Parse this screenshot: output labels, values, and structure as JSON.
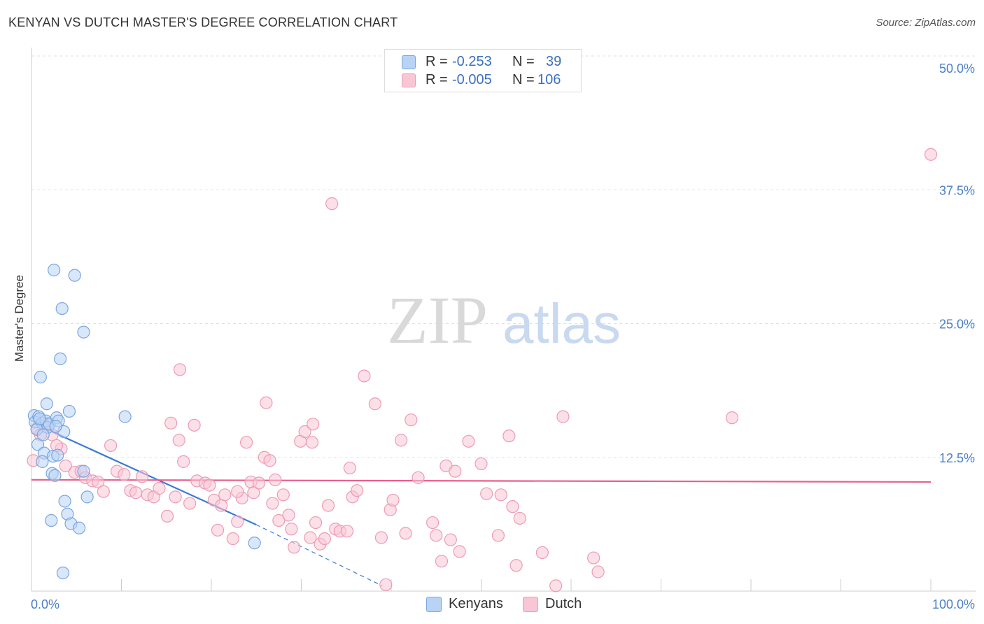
{
  "header": {
    "title": "KENYAN VS DUTCH MASTER'S DEGREE CORRELATION CHART",
    "source": "Source: ZipAtlas.com"
  },
  "watermark": {
    "zip": "ZIP",
    "atlas": "atlas"
  },
  "legend": {
    "rows": [
      {
        "r_label": "R =",
        "r_value": "-0.253",
        "n_label": "N =",
        "n_value": "39",
        "fill": "#b9d3f5",
        "stroke": "#7aa6e0"
      },
      {
        "r_label": "R =",
        "r_value": "-0.005",
        "n_label": "N =",
        "n_value": "106",
        "fill": "#f9c6d6",
        "stroke": "#ee9ab6"
      }
    ]
  },
  "bottom_legend": [
    {
      "label": "Kenyans",
      "fill": "#b9d3f5",
      "stroke": "#7aa6e0"
    },
    {
      "label": "Dutch",
      "fill": "#f9c6d6",
      "stroke": "#ee9ab6"
    }
  ],
  "chart_data": {
    "type": "scatter",
    "title": "KENYAN VS DUTCH MASTER'S DEGREE CORRELATION CHART",
    "xlabel": "",
    "ylabel": "Master's Degree",
    "xlim": [
      0,
      100
    ],
    "ylim": [
      0,
      50
    ],
    "x_tick_labels": [
      "0.0%",
      "100.0%"
    ],
    "y_ticks": [
      12.5,
      25.0,
      37.5,
      50.0
    ],
    "y_tick_labels": [
      "12.5%",
      "25.0%",
      "37.5%",
      "50.0%"
    ],
    "grid": true,
    "series": [
      {
        "name": "Kenyans",
        "color": "#7aa6e0",
        "fill": "#b9d3f5",
        "trend_color": "#3a7bd5",
        "trend": {
          "x0": 0.2,
          "y0": 15.7,
          "x1": 25.0,
          "y1": 6.2,
          "dash_x1": 39.0,
          "dash_y1": 0.5
        },
        "points": [
          [
            0.3,
            16.4
          ],
          [
            0.4,
            15.8
          ],
          [
            0.8,
            16.3
          ],
          [
            1.2,
            15.7
          ],
          [
            1.6,
            15.9
          ],
          [
            1.8,
            15.3
          ],
          [
            2.0,
            15.6
          ],
          [
            2.8,
            16.2
          ],
          [
            3.0,
            15.9
          ],
          [
            0.6,
            15.1
          ],
          [
            0.7,
            13.7
          ],
          [
            1.0,
            20.0
          ],
          [
            1.7,
            17.5
          ],
          [
            2.5,
            30.0
          ],
          [
            3.4,
            26.4
          ],
          [
            3.2,
            21.7
          ],
          [
            4.8,
            29.5
          ],
          [
            5.8,
            24.2
          ],
          [
            3.6,
            14.9
          ],
          [
            1.4,
            12.9
          ],
          [
            2.4,
            12.6
          ],
          [
            1.2,
            12.1
          ],
          [
            2.9,
            12.7
          ],
          [
            2.3,
            11.0
          ],
          [
            2.6,
            10.8
          ],
          [
            5.8,
            11.2
          ],
          [
            6.2,
            8.8
          ],
          [
            3.7,
            8.4
          ],
          [
            4.0,
            7.2
          ],
          [
            2.2,
            6.6
          ],
          [
            4.4,
            6.3
          ],
          [
            5.3,
            5.9
          ],
          [
            10.4,
            16.3
          ],
          [
            2.7,
            15.4
          ],
          [
            24.8,
            4.5
          ],
          [
            3.5,
            1.7
          ],
          [
            4.2,
            16.8
          ],
          [
            0.9,
            16.1
          ],
          [
            1.3,
            14.6
          ]
        ]
      },
      {
        "name": "Dutch",
        "color": "#ee9ab6",
        "fill": "#f9c6d6",
        "trend_color": "#e8608c",
        "trend": {
          "x0": 0.0,
          "y0": 10.4,
          "x1": 100.0,
          "y1": 10.2
        },
        "points": [
          [
            0.2,
            12.2
          ],
          [
            0.6,
            15.2
          ],
          [
            1.0,
            14.6
          ],
          [
            1.8,
            15.7
          ],
          [
            2.3,
            14.6
          ],
          [
            3.3,
            13.3
          ],
          [
            2.8,
            13.6
          ],
          [
            1.5,
            15.4
          ],
          [
            3.8,
            11.7
          ],
          [
            4.8,
            11.1
          ],
          [
            5.5,
            11.2
          ],
          [
            6.0,
            10.6
          ],
          [
            6.8,
            10.3
          ],
          [
            7.4,
            10.2
          ],
          [
            8.0,
            9.3
          ],
          [
            8.8,
            13.6
          ],
          [
            9.5,
            11.2
          ],
          [
            10.3,
            10.9
          ],
          [
            11.0,
            9.4
          ],
          [
            11.6,
            9.2
          ],
          [
            12.3,
            10.7
          ],
          [
            12.9,
            9.0
          ],
          [
            13.6,
            8.8
          ],
          [
            14.2,
            9.6
          ],
          [
            15.1,
            7.0
          ],
          [
            15.5,
            15.7
          ],
          [
            16.0,
            8.8
          ],
          [
            16.4,
            14.1
          ],
          [
            16.9,
            12.1
          ],
          [
            17.6,
            8.2
          ],
          [
            18.1,
            15.5
          ],
          [
            18.4,
            10.3
          ],
          [
            19.3,
            10.1
          ],
          [
            19.8,
            9.9
          ],
          [
            20.3,
            8.5
          ],
          [
            20.7,
            5.7
          ],
          [
            21.1,
            8.0
          ],
          [
            21.5,
            9.0
          ],
          [
            22.4,
            4.9
          ],
          [
            22.9,
            6.5
          ],
          [
            23.4,
            8.7
          ],
          [
            23.9,
            13.9
          ],
          [
            24.4,
            10.2
          ],
          [
            24.7,
            9.2
          ],
          [
            25.9,
            12.5
          ],
          [
            26.1,
            17.6
          ],
          [
            26.5,
            12.2
          ],
          [
            27.1,
            10.4
          ],
          [
            27.5,
            6.6
          ],
          [
            28.0,
            9.0
          ],
          [
            28.6,
            7.1
          ],
          [
            28.9,
            5.8
          ],
          [
            29.2,
            4.1
          ],
          [
            29.9,
            14.0
          ],
          [
            30.4,
            14.9
          ],
          [
            31.0,
            5.0
          ],
          [
            31.2,
            13.9
          ],
          [
            31.6,
            6.4
          ],
          [
            32.1,
            4.4
          ],
          [
            32.6,
            4.9
          ],
          [
            33.0,
            8.0
          ],
          [
            33.8,
            5.8
          ],
          [
            34.3,
            5.6
          ],
          [
            35.1,
            5.6
          ],
          [
            35.4,
            11.5
          ],
          [
            35.7,
            8.8
          ],
          [
            36.2,
            9.4
          ],
          [
            37.0,
            20.1
          ],
          [
            38.2,
            17.5
          ],
          [
            38.9,
            5.0
          ],
          [
            39.4,
            0.6
          ],
          [
            39.9,
            7.6
          ],
          [
            40.2,
            8.5
          ],
          [
            41.1,
            14.1
          ],
          [
            41.6,
            5.4
          ],
          [
            42.2,
            16.0
          ],
          [
            43.0,
            10.6
          ],
          [
            44.6,
            6.4
          ],
          [
            45.0,
            5.2
          ],
          [
            45.6,
            2.8
          ],
          [
            46.1,
            11.7
          ],
          [
            46.6,
            4.8
          ],
          [
            47.1,
            11.2
          ],
          [
            47.6,
            3.7
          ],
          [
            48.6,
            14.0
          ],
          [
            50.0,
            11.9
          ],
          [
            50.6,
            9.1
          ],
          [
            51.9,
            5.2
          ],
          [
            52.2,
            9.0
          ],
          [
            53.1,
            14.5
          ],
          [
            53.5,
            7.9
          ],
          [
            53.9,
            2.4
          ],
          [
            54.3,
            6.8
          ],
          [
            56.8,
            3.6
          ],
          [
            58.3,
            0.5
          ],
          [
            59.1,
            16.3
          ],
          [
            62.5,
            3.1
          ],
          [
            63.0,
            1.8
          ],
          [
            77.9,
            16.2
          ],
          [
            100.0,
            40.8
          ],
          [
            33.4,
            36.2
          ],
          [
            16.5,
            20.7
          ],
          [
            22.9,
            9.3
          ],
          [
            25.3,
            10.1
          ],
          [
            26.8,
            8.2
          ],
          [
            31.3,
            15.6
          ]
        ]
      }
    ]
  }
}
